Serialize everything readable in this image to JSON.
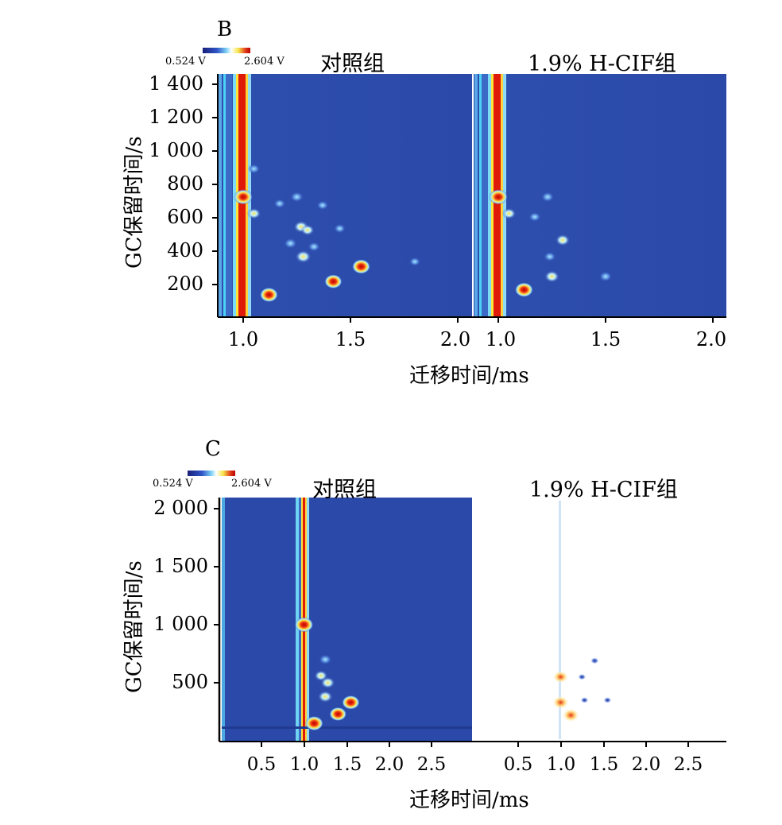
{
  "panels": [
    {
      "label": "B",
      "colorbar": {
        "min_label": "0.524 V",
        "max_label": "2.604 V"
      },
      "titles": [
        "对照组",
        "1.9% H-CIF组"
      ],
      "ylabel": "GC保留时间/s",
      "xlabel": "迁移时间/ms",
      "yticks": [
        "1 400",
        "1 200",
        "1 000",
        "800",
        "600",
        "400",
        "200"
      ],
      "xticks_left": [
        "1.0",
        "1.5",
        "2.0"
      ],
      "xticks_right": [
        "1.0",
        "1.5",
        "2.0"
      ]
    },
    {
      "label": "C",
      "colorbar": {
        "min_label": "0.524 V",
        "max_label": "2.604 V"
      },
      "titles": [
        "对照组",
        "1.9% H-CIF组"
      ],
      "ylabel": "GC保留时间/s",
      "xlabel": "迁移时间/ms",
      "yticks": [
        "2 000",
        "1 500",
        "1 000",
        "500"
      ],
      "xticks_left": [
        "0.5",
        "1.0",
        "1.5",
        "2.0",
        "2.5"
      ],
      "xticks_right": [
        "0.5",
        "1.0",
        "1.5",
        "2.0",
        "2.5"
      ]
    }
  ],
  "chart_data": [
    {
      "type": "heatmap",
      "panel": "B",
      "title": [
        "对照组",
        "1.9% H-CIF组"
      ],
      "xlabel": "迁移时间/ms",
      "ylabel": "GC保留时间/s",
      "colorbar_range": [
        0.524,
        2.604
      ],
      "colorbar_unit": "V",
      "xlim": [
        0.9,
        2.05
      ],
      "ylim": [
        0,
        1460
      ],
      "series": [
        {
          "name": "对照组",
          "peaks": [
            {
              "x": 1.0,
              "y": 720,
              "intensity": 2.6
            },
            {
              "x": 1.05,
              "y": 890,
              "intensity": 1.2
            },
            {
              "x": 1.05,
              "y": 620,
              "intensity": 1.6
            },
            {
              "x": 1.17,
              "y": 680,
              "intensity": 1.1
            },
            {
              "x": 1.25,
              "y": 720,
              "intensity": 1.4
            },
            {
              "x": 1.37,
              "y": 670,
              "intensity": 1.1
            },
            {
              "x": 1.27,
              "y": 540,
              "intensity": 1.8
            },
            {
              "x": 1.3,
              "y": 520,
              "intensity": 1.5
            },
            {
              "x": 1.22,
              "y": 440,
              "intensity": 1.4
            },
            {
              "x": 1.28,
              "y": 360,
              "intensity": 2.0
            },
            {
              "x": 1.33,
              "y": 420,
              "intensity": 1.2
            },
            {
              "x": 1.45,
              "y": 530,
              "intensity": 1.1
            },
            {
              "x": 1.55,
              "y": 300,
              "intensity": 2.5
            },
            {
              "x": 1.42,
              "y": 210,
              "intensity": 2.4
            },
            {
              "x": 1.12,
              "y": 130,
              "intensity": 2.5
            },
            {
              "x": 1.8,
              "y": 330,
              "intensity": 1.0
            }
          ]
        },
        {
          "name": "1.9% H-CIF组",
          "peaks": [
            {
              "x": 1.0,
              "y": 720,
              "intensity": 2.6
            },
            {
              "x": 1.05,
              "y": 620,
              "intensity": 1.6
            },
            {
              "x": 1.23,
              "y": 720,
              "intensity": 1.3
            },
            {
              "x": 1.17,
              "y": 600,
              "intensity": 1.2
            },
            {
              "x": 1.3,
              "y": 460,
              "intensity": 1.7
            },
            {
              "x": 1.24,
              "y": 360,
              "intensity": 1.2
            },
            {
              "x": 1.25,
              "y": 240,
              "intensity": 1.8
            },
            {
              "x": 1.12,
              "y": 160,
              "intensity": 2.5
            },
            {
              "x": 1.5,
              "y": 240,
              "intensity": 1.3
            }
          ]
        }
      ]
    },
    {
      "type": "heatmap",
      "panel": "C",
      "title": [
        "对照组",
        "1.9% H-CIF组"
      ],
      "xlabel": "迁移时间/ms",
      "ylabel": "GC保留时间/s",
      "colorbar_range": [
        0.524,
        2.604
      ],
      "colorbar_unit": "V",
      "xlim": [
        0,
        3.0
      ],
      "ylim": [
        0,
        2050
      ],
      "series": [
        {
          "name": "对照组",
          "peaks": [
            {
              "x": 1.0,
              "y": 1000,
              "intensity": 2.6
            },
            {
              "x": 1.25,
              "y": 700,
              "intensity": 1.3
            },
            {
              "x": 1.2,
              "y": 560,
              "intensity": 1.5
            },
            {
              "x": 1.28,
              "y": 500,
              "intensity": 1.7
            },
            {
              "x": 1.25,
              "y": 380,
              "intensity": 1.8
            },
            {
              "x": 1.55,
              "y": 330,
              "intensity": 2.4
            },
            {
              "x": 1.4,
              "y": 230,
              "intensity": 2.3
            },
            {
              "x": 1.12,
              "y": 150,
              "intensity": 2.5
            }
          ]
        },
        {
          "name": "1.9% H-CIF组",
          "peaks": [
            {
              "x": 1.0,
              "y": 550,
              "intensity": 2.0
            },
            {
              "x": 1.0,
              "y": 330,
              "intensity": 2.2
            },
            {
              "x": 1.25,
              "y": 550,
              "intensity": 0.4
            },
            {
              "x": 1.28,
              "y": 350,
              "intensity": 0.4
            },
            {
              "x": 1.55,
              "y": 350,
              "intensity": 0.4
            },
            {
              "x": 1.4,
              "y": 690,
              "intensity": 0.5
            },
            {
              "x": 1.12,
              "y": 220,
              "intensity": 2.3
            }
          ]
        }
      ]
    }
  ]
}
